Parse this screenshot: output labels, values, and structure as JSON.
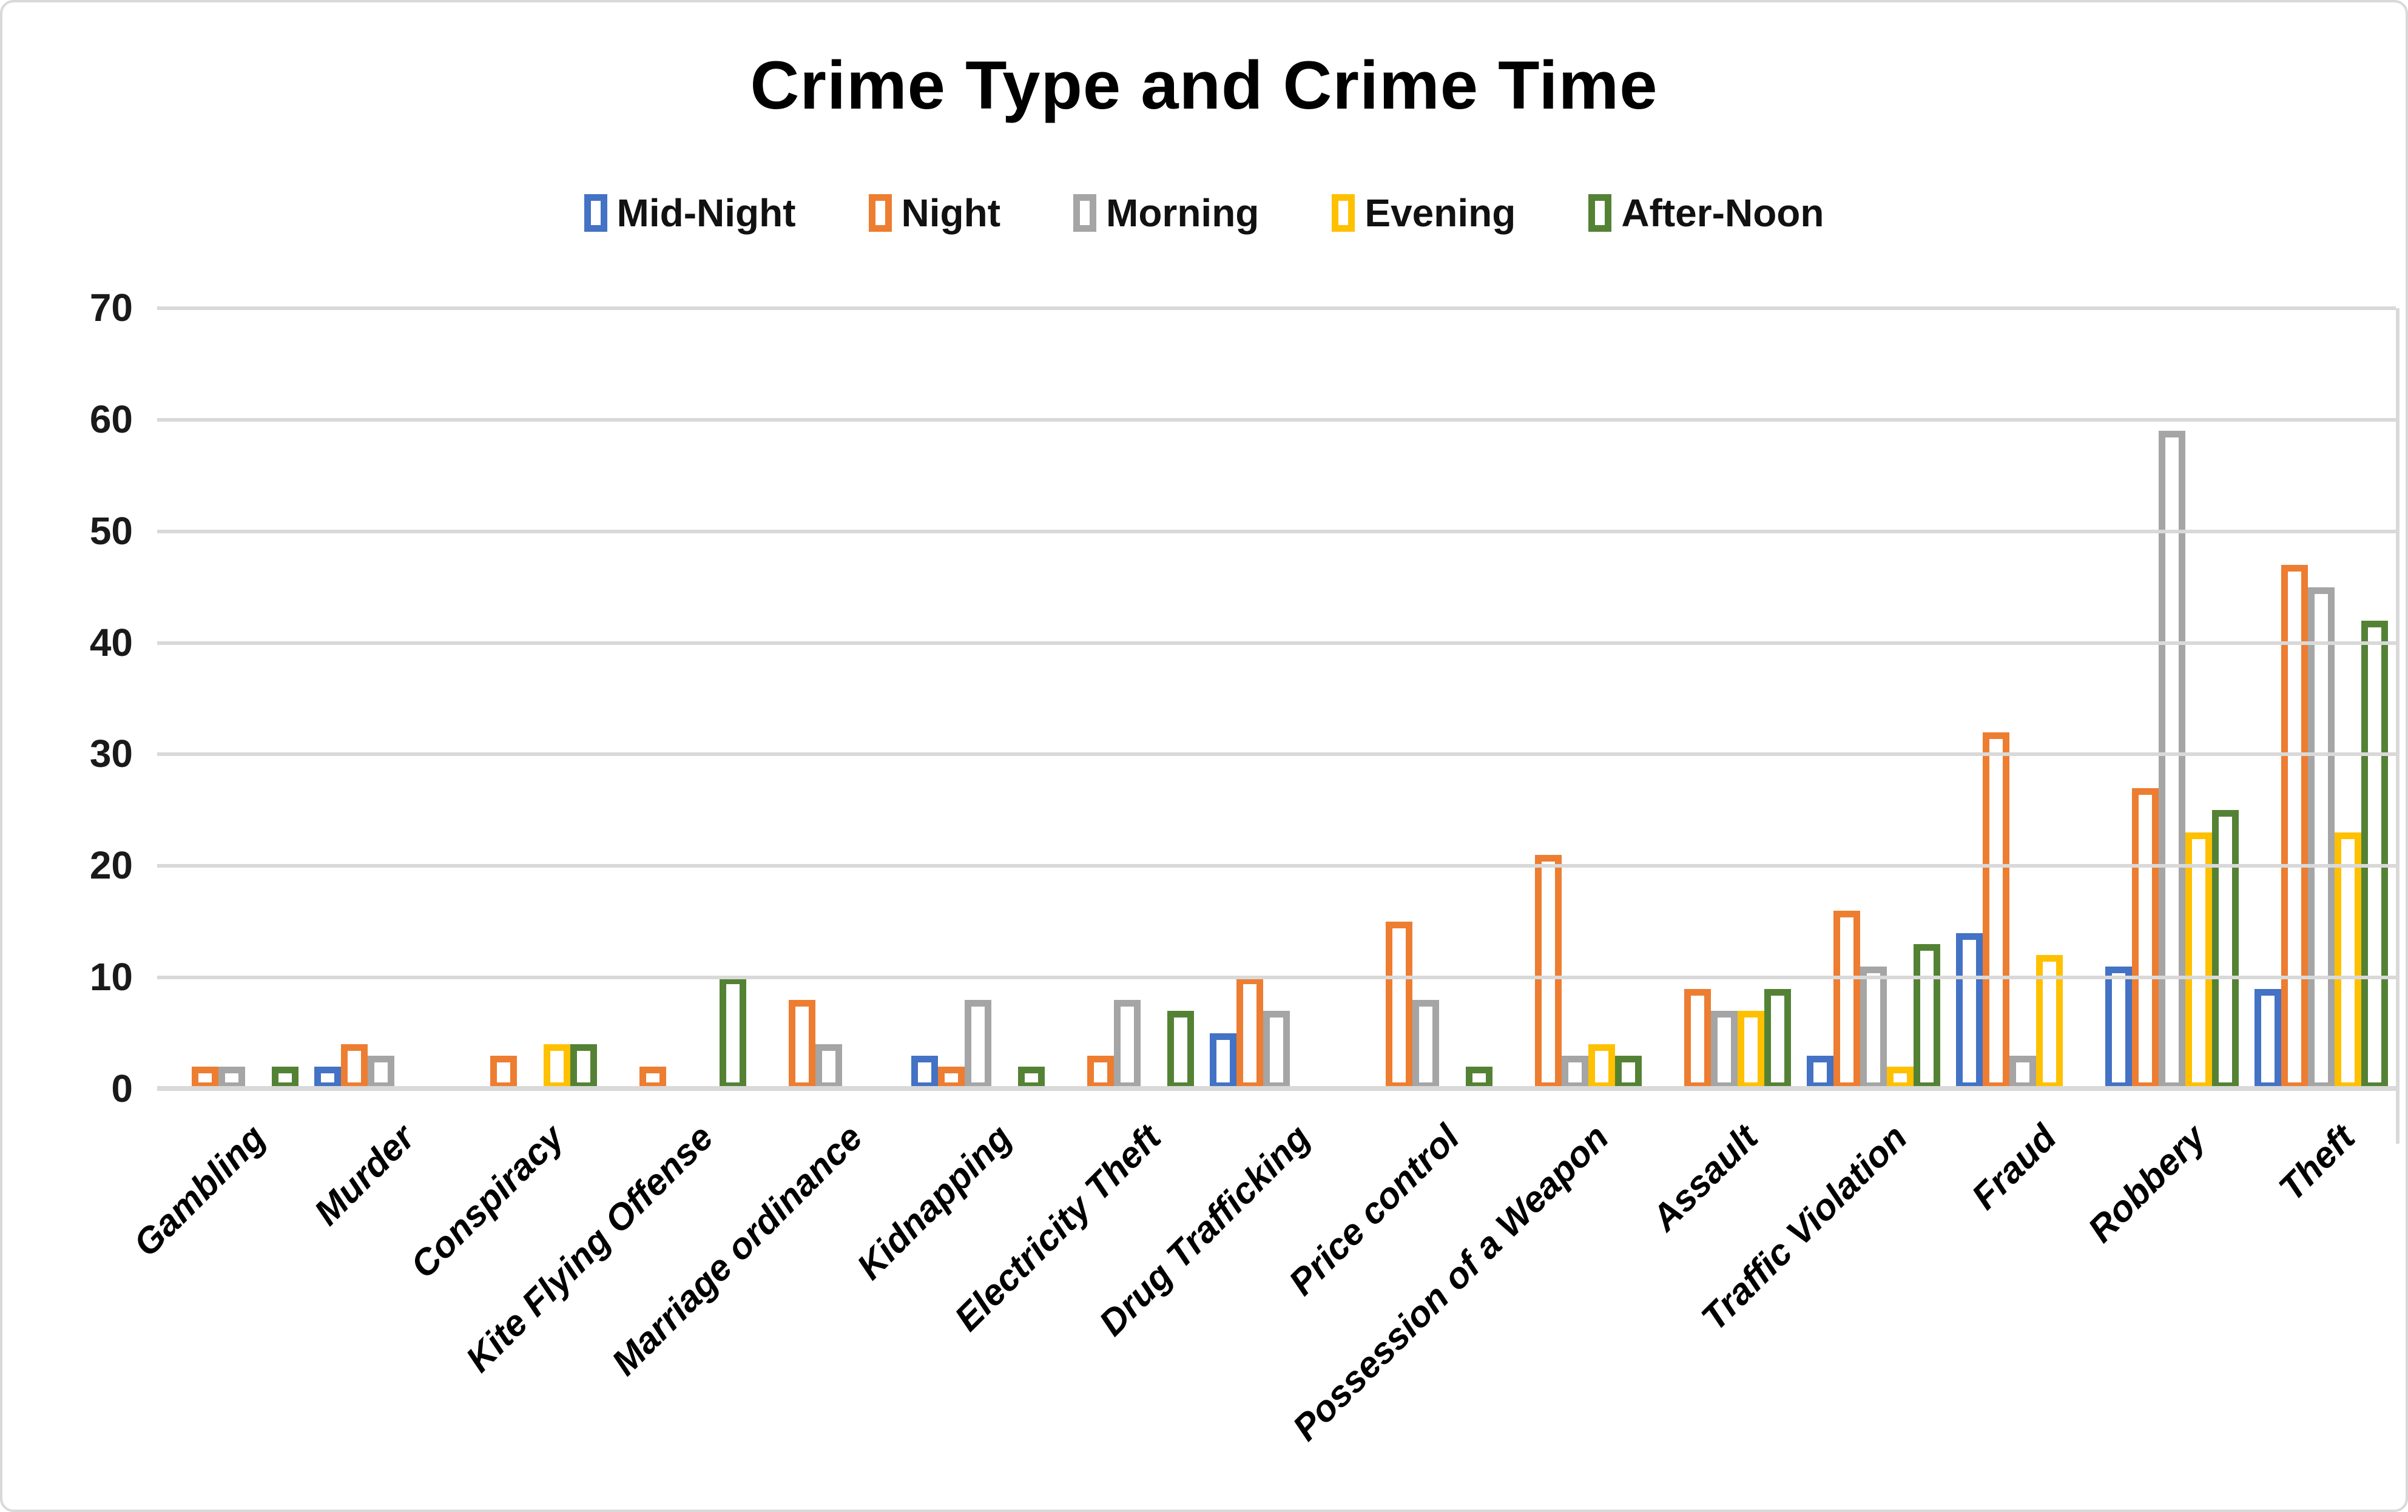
{
  "title": "Crime Type and Crime Time",
  "chart_data": {
    "type": "bar",
    "title": "Crime Type and Crime Time",
    "bar_style": "outlined-hollow",
    "grid": true,
    "legend_position": "top",
    "ylim": [
      0,
      70
    ],
    "ytick_step": 10,
    "yticks": [
      0,
      10,
      20,
      30,
      40,
      50,
      60,
      70
    ],
    "gridline_color": "#d9d9d9",
    "axis_label_color": "#1a1a1a",
    "categories": [
      "Gambling",
      "Murder",
      "Conspiracy",
      "Kite Flying Offense",
      "Marriage ordinance",
      "Kidnapping",
      "Electricity Theft",
      "Drug Trafficking",
      "Price control",
      "Possession of a Weapon",
      "Assault",
      "Traffic Violation",
      "Fraud",
      "Robbery",
      "Theft"
    ],
    "series": [
      {
        "name": "Mid-Night",
        "color": "#4472C4",
        "values": [
          0,
          2,
          0,
          0,
          0,
          3,
          0,
          5,
          0,
          0,
          0,
          3,
          14,
          11,
          9
        ]
      },
      {
        "name": "Night",
        "color": "#ED7D31",
        "values": [
          2,
          4,
          3,
          2,
          8,
          2,
          3,
          10,
          15,
          21,
          9,
          16,
          32,
          27,
          47
        ]
      },
      {
        "name": "Morning",
        "color": "#A5A5A5",
        "values": [
          2,
          3,
          0,
          0,
          4,
          8,
          8,
          7,
          8,
          3,
          7,
          11,
          3,
          59,
          45
        ]
      },
      {
        "name": "Evening",
        "color": "#FFC000",
        "values": [
          0,
          0,
          4,
          0,
          0,
          0,
          0,
          0,
          0,
          4,
          7,
          2,
          12,
          23,
          23
        ]
      },
      {
        "name": "After-Noon",
        "color": "#548235",
        "values": [
          2,
          0,
          4,
          10,
          0,
          2,
          7,
          0,
          2,
          3,
          9,
          13,
          0,
          25,
          42
        ]
      }
    ]
  }
}
